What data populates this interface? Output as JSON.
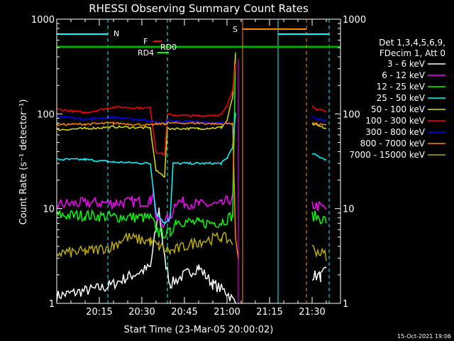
{
  "chart_data": {
    "type": "line",
    "title": "RHESSI Observing Summary Count Rates",
    "xlabel": "Start Time (23-Mar-05 20:00:02)",
    "ylabel": "Count Rate (s⁻¹ detector⁻¹)",
    "x_range_min": [
      0,
      100
    ],
    "ylim": [
      1,
      1000
    ],
    "y_scale": "log",
    "y_ticks": [
      {
        "value": 1,
        "label": "1"
      },
      {
        "value": 10,
        "label": "10"
      },
      {
        "value": 100,
        "label": "100"
      },
      {
        "value": 1000,
        "label": "1000"
      }
    ],
    "x_ticks": [
      {
        "value": 15,
        "label": "20:15"
      },
      {
        "value": 30,
        "label": "20:30"
      },
      {
        "value": 45,
        "label": "20:45"
      },
      {
        "value": 60,
        "label": "21:00"
      },
      {
        "value": 75,
        "label": "21:15"
      },
      {
        "value": 90,
        "label": "21:30"
      }
    ],
    "legend_header": [
      "Det 1,3,4,5,6,9,",
      "FDecim 1, Att 0"
    ],
    "legend_position": "right",
    "series": [
      {
        "name": "3 - 6 keV",
        "color": "#ffffff",
        "points": [
          [
            0,
            1.2
          ],
          [
            18,
            1.5
          ],
          [
            25,
            1.9
          ],
          [
            33,
            2.4
          ],
          [
            36,
            10
          ],
          [
            38,
            3
          ],
          [
            40,
            1.6
          ],
          [
            45,
            2.0
          ],
          [
            50,
            2.4
          ],
          [
            55,
            1.6
          ],
          [
            60,
            1.3
          ],
          [
            63,
            1.0
          ],
          [
            90,
            2.0
          ],
          [
            93,
            1.9
          ],
          [
            95,
            2.2
          ]
        ]
      },
      {
        "name": "6 - 12 keV",
        "color": "#ff00ff",
        "points": [
          [
            0,
            11
          ],
          [
            10,
            11.5
          ],
          [
            20,
            11.5
          ],
          [
            33,
            12
          ],
          [
            34,
            16
          ],
          [
            35,
            8
          ],
          [
            37,
            7
          ],
          [
            40,
            8
          ],
          [
            42,
            12
          ],
          [
            50,
            11
          ],
          [
            58,
            11
          ],
          [
            62,
            13
          ],
          [
            63,
            300
          ],
          [
            90,
            11
          ],
          [
            95,
            10
          ]
        ]
      },
      {
        "name": "12 - 25 keV",
        "color": "#00ff00",
        "points": [
          [
            0,
            8.5
          ],
          [
            10,
            8.5
          ],
          [
            20,
            8.2
          ],
          [
            33,
            8.0
          ],
          [
            36,
            5.5
          ],
          [
            40,
            5.5
          ],
          [
            42,
            7.5
          ],
          [
            50,
            7.0
          ],
          [
            58,
            7.2
          ],
          [
            62,
            8.5
          ],
          [
            63,
            400
          ],
          [
            90,
            8.5
          ],
          [
            95,
            7.5
          ]
        ]
      },
      {
        "name": "25 - 50 keV",
        "color": "#00ffff",
        "points": [
          [
            0,
            33
          ],
          [
            10,
            33
          ],
          [
            20,
            31
          ],
          [
            33,
            30
          ],
          [
            35,
            9
          ],
          [
            38,
            7
          ],
          [
            40,
            8
          ],
          [
            41,
            30
          ],
          [
            50,
            30
          ],
          [
            58,
            30
          ],
          [
            60,
            34
          ],
          [
            62,
            45
          ],
          [
            63,
            100
          ],
          [
            90,
            38
          ],
          [
            95,
            33
          ]
        ]
      },
      {
        "name": "50 - 100 keV",
        "color": "#dddd00",
        "points": [
          [
            0,
            68
          ],
          [
            10,
            70
          ],
          [
            20,
            73
          ],
          [
            33,
            71
          ],
          [
            35,
            25
          ],
          [
            38,
            22
          ],
          [
            39,
            70
          ],
          [
            50,
            70
          ],
          [
            58,
            72
          ],
          [
            60,
            85
          ],
          [
            62,
            150
          ],
          [
            63,
            420
          ],
          [
            90,
            78
          ],
          [
            95,
            70
          ]
        ]
      },
      {
        "name": "100 - 300 keV",
        "color": "#ff0000",
        "points": [
          [
            0,
            112
          ],
          [
            10,
            103
          ],
          [
            20,
            118
          ],
          [
            33,
            115
          ],
          [
            35,
            40
          ],
          [
            38,
            37
          ],
          [
            39,
            98
          ],
          [
            50,
            95
          ],
          [
            58,
            98
          ],
          [
            60,
            120
          ],
          [
            62,
            180
          ],
          [
            63,
            350
          ],
          [
            90,
            120
          ],
          [
            95,
            103
          ]
        ]
      },
      {
        "name": "300 - 800 keV",
        "color": "#0000ff",
        "points": [
          [
            0,
            95
          ],
          [
            10,
            88
          ],
          [
            20,
            92
          ],
          [
            33,
            85
          ],
          [
            35,
            80
          ],
          [
            38,
            80
          ],
          [
            39,
            85
          ],
          [
            50,
            82
          ],
          [
            58,
            80
          ],
          [
            62,
            78
          ],
          [
            90,
            92
          ],
          [
            95,
            85
          ]
        ]
      },
      {
        "name": "800 - 7000 keV",
        "color": "#ff8800",
        "points": [
          [
            0,
            77
          ],
          [
            10,
            78
          ],
          [
            20,
            80
          ],
          [
            33,
            76
          ],
          [
            35,
            78
          ],
          [
            38,
            79
          ],
          [
            39,
            80
          ],
          [
            50,
            80
          ],
          [
            58,
            78
          ],
          [
            62,
            80
          ],
          [
            63,
            5
          ],
          [
            64,
            3
          ],
          [
            90,
            80
          ],
          [
            95,
            75
          ]
        ]
      },
      {
        "name": "7000 - 15000 keV",
        "color": "#bbaa00",
        "points": [
          [
            0,
            3.4
          ],
          [
            10,
            3.5
          ],
          [
            20,
            4.0
          ],
          [
            24,
            5.0
          ],
          [
            33,
            4.5
          ],
          [
            36,
            4.0
          ],
          [
            40,
            3.5
          ],
          [
            50,
            4.5
          ],
          [
            58,
            5.0
          ],
          [
            62,
            4.5
          ],
          [
            90,
            3.8
          ],
          [
            95,
            3.2
          ]
        ]
      }
    ],
    "annotations": [
      {
        "label": "N",
        "color": "#00ffff"
      },
      {
        "label": "F",
        "color": "#ff0000"
      },
      {
        "label": "RD0",
        "color": "#00ff00"
      },
      {
        "label": "RD4",
        "color": "#00ff00"
      },
      {
        "label": "S",
        "color": "#ff8800"
      }
    ],
    "footer": "15-Oct-2021 19:06"
  }
}
